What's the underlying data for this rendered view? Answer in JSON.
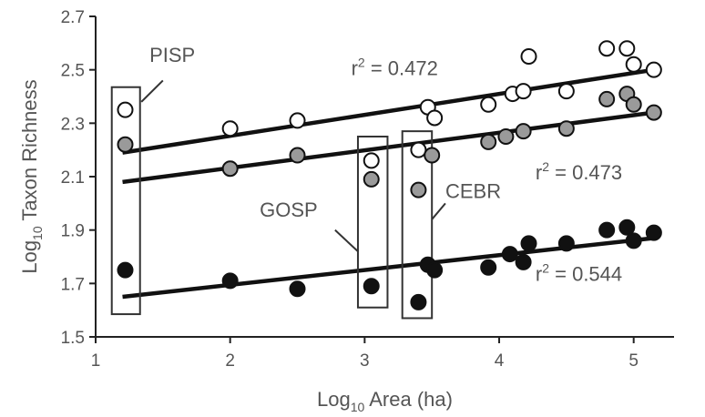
{
  "chart_data": {
    "type": "scatter",
    "xlabel": {
      "prefix": "Log",
      "sub": "10",
      "suffix": " Area (ha)"
    },
    "ylabel": {
      "prefix": "Log",
      "sub": "10",
      "suffix": " Taxon Richness"
    },
    "xlim": [
      1,
      5.3
    ],
    "ylim": [
      1.5,
      2.7
    ],
    "xticks": [
      "1",
      "2",
      "3",
      "4",
      "5"
    ],
    "yticks": [
      "1.5",
      "1.7",
      "1.9",
      "2.1",
      "2.3",
      "2.5",
      "2.7"
    ],
    "grid": false,
    "colors": {
      "open": "#ffffff",
      "gray": "#9a9a9a",
      "black": "#111111"
    },
    "series": [
      {
        "marker": "open",
        "points": [
          [
            1.22,
            2.35
          ],
          [
            2.0,
            2.28
          ],
          [
            2.5,
            2.31
          ],
          [
            3.05,
            2.16
          ],
          [
            3.4,
            2.2
          ],
          [
            3.47,
            2.36
          ],
          [
            3.52,
            2.32
          ],
          [
            3.92,
            2.37
          ],
          [
            4.1,
            2.41
          ],
          [
            4.18,
            2.42
          ],
          [
            4.22,
            2.55
          ],
          [
            4.5,
            2.42
          ],
          [
            4.8,
            2.58
          ],
          [
            4.95,
            2.58
          ],
          [
            5.0,
            2.52
          ],
          [
            5.15,
            2.5
          ]
        ],
        "fit": [
          [
            1.2,
            2.19
          ],
          [
            5.15,
            2.5
          ]
        ]
      },
      {
        "marker": "gray",
        "points": [
          [
            1.22,
            2.22
          ],
          [
            2.0,
            2.13
          ],
          [
            2.5,
            2.18
          ],
          [
            3.05,
            2.09
          ],
          [
            3.4,
            2.05
          ],
          [
            3.5,
            2.18
          ],
          [
            3.92,
            2.23
          ],
          [
            4.05,
            2.25
          ],
          [
            4.18,
            2.27
          ],
          [
            4.5,
            2.28
          ],
          [
            4.8,
            2.39
          ],
          [
            4.95,
            2.41
          ],
          [
            5.0,
            2.37
          ],
          [
            5.15,
            2.34
          ]
        ],
        "fit": [
          [
            1.2,
            2.08
          ],
          [
            5.15,
            2.34
          ]
        ]
      },
      {
        "marker": "black",
        "points": [
          [
            1.22,
            1.75
          ],
          [
            2.0,
            1.71
          ],
          [
            2.5,
            1.68
          ],
          [
            3.05,
            1.69
          ],
          [
            3.4,
            1.63
          ],
          [
            3.47,
            1.77
          ],
          [
            3.52,
            1.75
          ],
          [
            3.92,
            1.76
          ],
          [
            4.08,
            1.81
          ],
          [
            4.18,
            1.78
          ],
          [
            4.22,
            1.85
          ],
          [
            4.5,
            1.85
          ],
          [
            4.8,
            1.9
          ],
          [
            4.95,
            1.91
          ],
          [
            5.0,
            1.86
          ],
          [
            5.15,
            1.89
          ]
        ],
        "fit": [
          [
            1.2,
            1.65
          ],
          [
            5.15,
            1.87
          ]
        ]
      }
    ],
    "annotations": [
      {
        "id": "r2-open",
        "prefix": "r",
        "sup": "2",
        "suffix": " = 0.472",
        "x": 2.9,
        "y": 2.48
      },
      {
        "id": "r2-gray",
        "prefix": "r",
        "sup": "2",
        "suffix": " = 0.473",
        "x": 4.27,
        "y": 2.09
      },
      {
        "id": "r2-black",
        "prefix": "r",
        "sup": "2",
        "suffix": " = 0.544",
        "x": 4.27,
        "y": 1.71
      }
    ],
    "boxes": [
      {
        "label": "PISP",
        "x_range": [
          1.12,
          1.33
        ],
        "y_range": [
          1.585,
          2.435
        ],
        "label_x": 1.4,
        "label_y": 2.53,
        "pointer": [
          [
            1.5,
            2.46
          ],
          [
            1.34,
            2.38
          ]
        ]
      },
      {
        "label": "GOSP",
        "x_range": [
          2.95,
          3.17
        ],
        "y_range": [
          1.61,
          2.25
        ],
        "label_x": 2.22,
        "label_y": 1.95,
        "pointer": [
          [
            2.78,
            1.9
          ],
          [
            2.95,
            1.82
          ]
        ]
      },
      {
        "label": "CEBR",
        "x_range": [
          3.28,
          3.5
        ],
        "y_range": [
          1.57,
          2.27
        ],
        "label_x": 3.6,
        "label_y": 2.02,
        "pointer": [
          [
            3.6,
            2.0
          ],
          [
            3.5,
            1.94
          ]
        ]
      }
    ]
  }
}
